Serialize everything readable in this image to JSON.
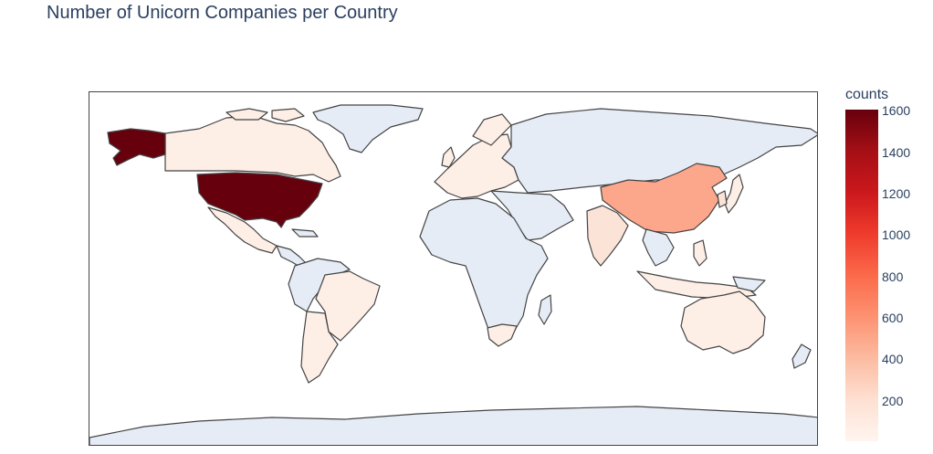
{
  "title": "Number of Unicorn Companies per Country",
  "colorbar": {
    "title": "counts",
    "ticks": [
      "1600",
      "1400",
      "1200",
      "1000",
      "800",
      "600",
      "400",
      "200"
    ],
    "colorscale": [
      "#fff5f0",
      "#fee0d2",
      "#fcbba1",
      "#fc9272",
      "#fb6a4a",
      "#ef3b2c",
      "#cb181d",
      "#a50f15",
      "#67000d"
    ],
    "range": [
      0,
      1600
    ]
  },
  "colors": {
    "no_data": "#e5ecf6",
    "land_border": "#444444"
  },
  "map_data": {
    "type": "choropleth",
    "projection": "equirectangular",
    "regions": [
      {
        "name": "United States",
        "value": 1600
      },
      {
        "name": "China",
        "value": 500
      },
      {
        "name": "India",
        "value": 100
      },
      {
        "name": "United Kingdom",
        "value": 80
      },
      {
        "name": "Germany",
        "value": 50
      },
      {
        "name": "France",
        "value": 40
      },
      {
        "name": "Canada",
        "value": 40
      },
      {
        "name": "Brazil",
        "value": 30
      },
      {
        "name": "Australia",
        "value": 20
      },
      {
        "name": "South Africa",
        "value": 5
      }
    ]
  }
}
